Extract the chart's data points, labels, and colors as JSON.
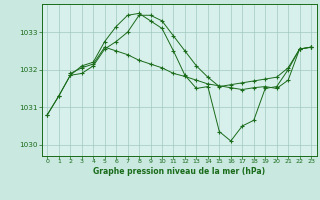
{
  "title": "Graphe pression niveau de la mer (hPa)",
  "background_color": "#c8e8e0",
  "plot_bg_color": "#d8f0ec",
  "grid_color": "#a0c8c0",
  "line_color": "#1a6b1a",
  "xlim": [
    -0.5,
    23.5
  ],
  "ylim": [
    1029.7,
    1033.75
  ],
  "yticks": [
    1030,
    1031,
    1032,
    1033
  ],
  "xticks": [
    0,
    1,
    2,
    3,
    4,
    5,
    6,
    7,
    8,
    9,
    10,
    11,
    12,
    13,
    14,
    15,
    16,
    17,
    18,
    19,
    20,
    21,
    22,
    23
  ],
  "series": {
    "line1": {
      "x": [
        0,
        1,
        2,
        3,
        4,
        5,
        6,
        7,
        8,
        9,
        10,
        11,
        12,
        13,
        14,
        15,
        16,
        17,
        18,
        19,
        20,
        21,
        22,
        23
      ],
      "y": [
        1030.8,
        1031.3,
        1031.85,
        1031.9,
        1032.1,
        1032.55,
        1032.75,
        1033.0,
        1033.45,
        1033.45,
        1033.3,
        1032.9,
        1032.5,
        1032.1,
        1031.8,
        1031.55,
        1031.6,
        1031.65,
        1031.7,
        1031.75,
        1031.8,
        1032.05,
        1032.55,
        1032.6
      ]
    },
    "line2": {
      "x": [
        0,
        1,
        2,
        3,
        4,
        5,
        6,
        7,
        8,
        9,
        10,
        11,
        12,
        13,
        14,
        15,
        16,
        17,
        18,
        19,
        20,
        21,
        22,
        23
      ],
      "y": [
        1030.8,
        1031.3,
        1031.85,
        1032.1,
        1032.2,
        1032.75,
        1033.15,
        1033.45,
        1033.5,
        1033.3,
        1033.1,
        1032.5,
        1031.85,
        1031.5,
        1031.55,
        1030.35,
        1030.1,
        1030.5,
        1030.65,
        1031.5,
        1031.55,
        1032.0,
        1032.55,
        1032.6
      ]
    },
    "line3": {
      "x": [
        2,
        3,
        4,
        5,
        6,
        7,
        8,
        9,
        10,
        11,
        12,
        13,
        14,
        15,
        16,
        17,
        18,
        19,
        20,
        21,
        22,
        23
      ],
      "y": [
        1031.9,
        1032.05,
        1032.15,
        1032.6,
        1032.5,
        1032.4,
        1032.25,
        1032.15,
        1032.05,
        1031.9,
        1031.82,
        1031.72,
        1031.62,
        1031.57,
        1031.52,
        1031.47,
        1031.52,
        1031.55,
        1031.5,
        1031.72,
        1032.55,
        1032.6
      ]
    }
  }
}
